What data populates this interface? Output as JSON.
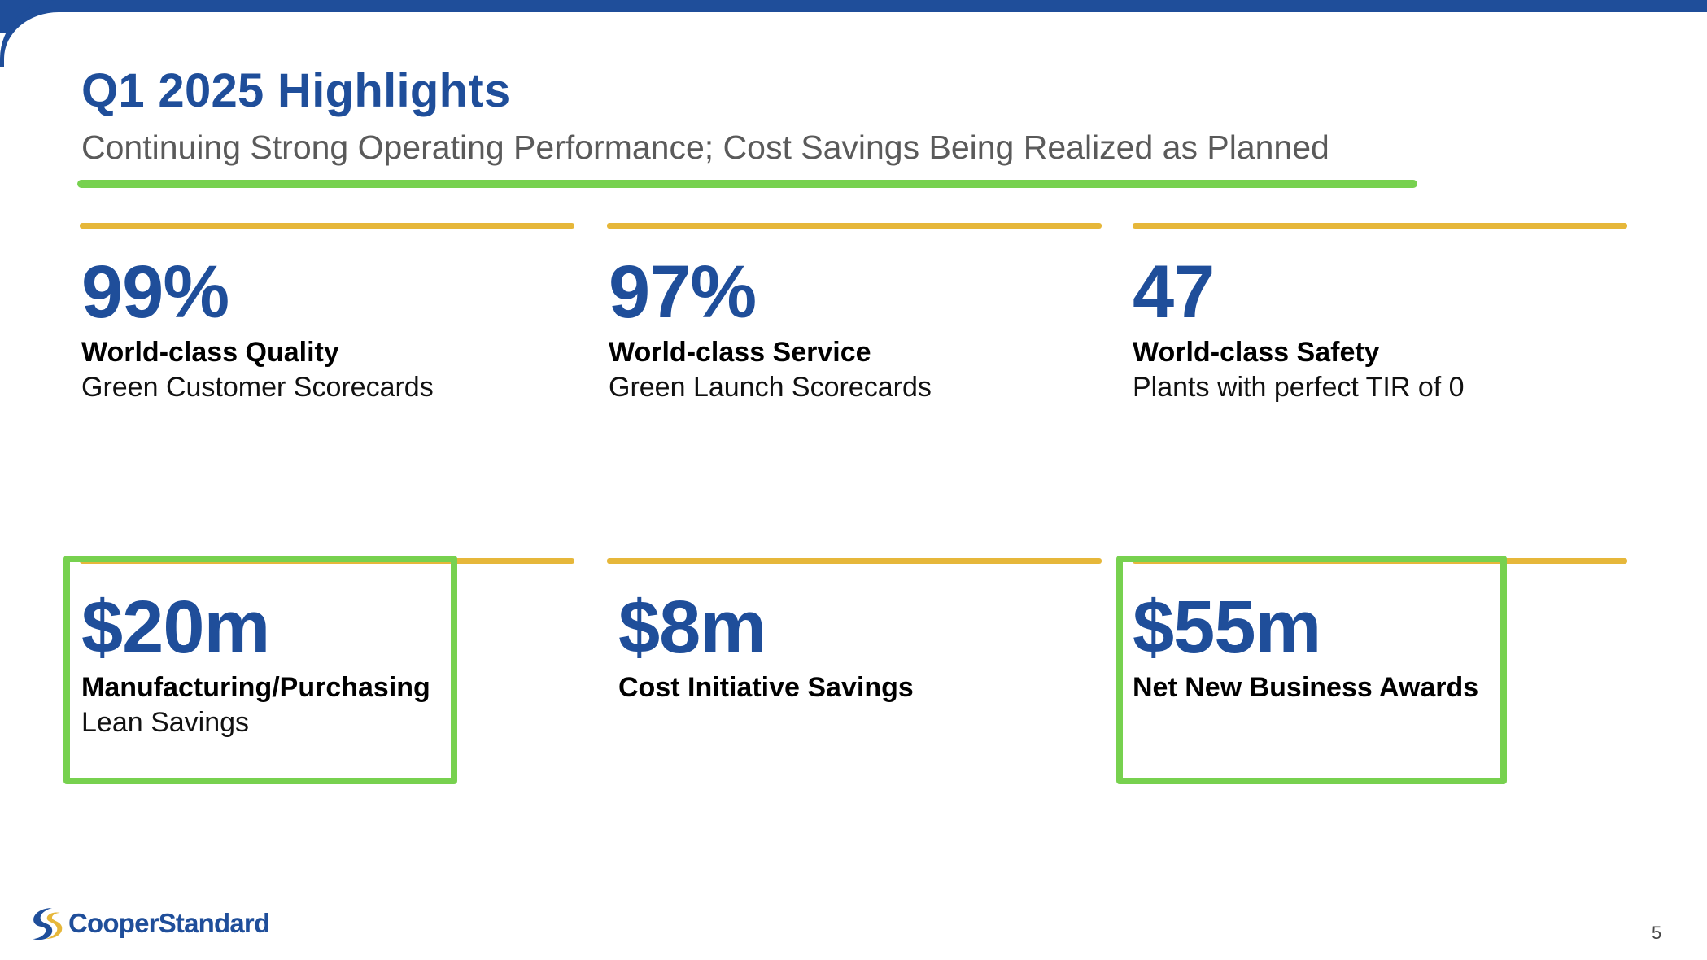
{
  "slide": {
    "title": "Q1 2025 Highlights",
    "subtitle": "Continuing Strong Operating Performance; Cost Savings Being Realized as Planned",
    "page_number": "5"
  },
  "metrics_top": [
    {
      "value": "99%",
      "label": "World-class Quality",
      "sub": "Green Customer Scorecards"
    },
    {
      "value": "97%",
      "label": "World-class Service",
      "sub": "Green Launch Scorecards"
    },
    {
      "value": "47",
      "label": "World-class Safety",
      "sub": "Plants with perfect TIR of 0"
    }
  ],
  "metrics_bottom": [
    {
      "value": "$20m",
      "label": "Manufacturing/Purchasing",
      "sub": "Lean Savings",
      "highlighted": true
    },
    {
      "value": "$8m",
      "label": "Cost Initiative Savings",
      "highlighted": false
    },
    {
      "value": "$55m",
      "label": "Net New Business Awards",
      "highlighted": true
    }
  ],
  "logo": {
    "text": "CooperStandard",
    "icon": "cooper-standard-swoosh-icon"
  },
  "colors": {
    "brand_blue": "#1f4e9a",
    "highlight_green": "#77d14f",
    "rule_gold": "#e6b73a"
  }
}
